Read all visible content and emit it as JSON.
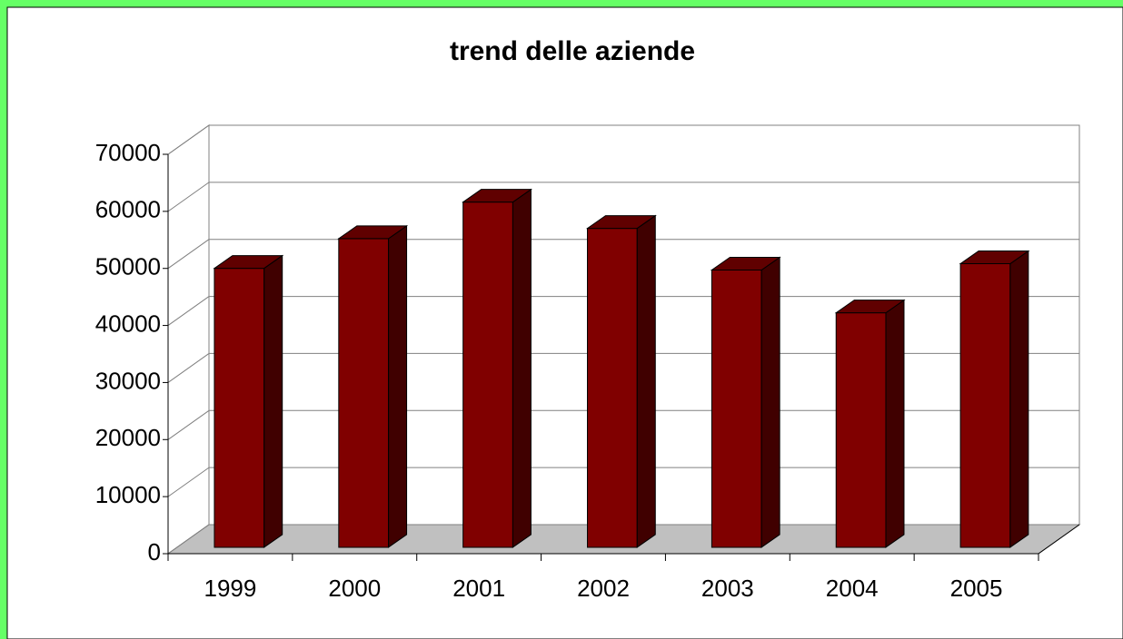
{
  "chart_data": {
    "type": "bar3d",
    "title": "trend delle aziende",
    "categories": [
      "1999",
      "2000",
      "2001",
      "2002",
      "2003",
      "2004",
      "2005"
    ],
    "values": [
      48900,
      54100,
      60500,
      55900,
      48600,
      41100,
      49700
    ],
    "color": "#800000",
    "ylim": [
      0,
      70000
    ],
    "yticks": [
      0,
      10000,
      20000,
      30000,
      40000,
      50000,
      60000,
      70000
    ],
    "grid": true
  }
}
